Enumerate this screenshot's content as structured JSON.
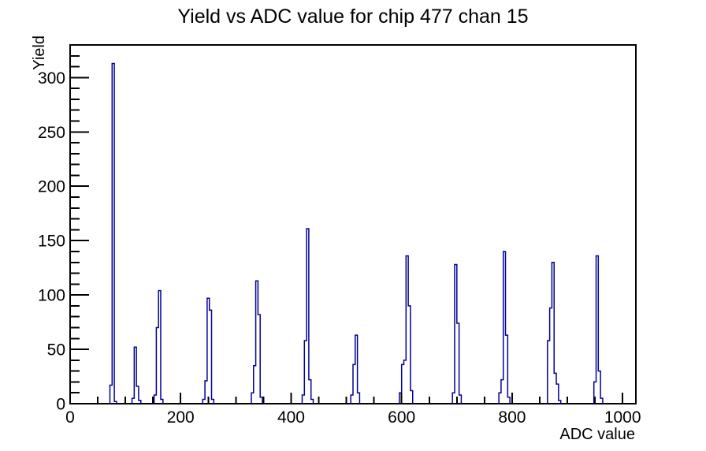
{
  "page": {
    "background_color": "#ffffff"
  },
  "chart_data": {
    "type": "bar",
    "title": "Yield vs ADC value for chip 477 chan 15",
    "xlabel": "ADC value",
    "ylabel": "Yield",
    "xlim": [
      0,
      1024
    ],
    "ylim": [
      0,
      330
    ],
    "x_major_ticks": [
      0,
      200,
      400,
      600,
      800,
      1000
    ],
    "x_minor_step": 50,
    "y_major_ticks": [
      0,
      50,
      100,
      150,
      200,
      250,
      300
    ],
    "y_minor_step": 10,
    "grid": false,
    "legend": false,
    "line_color": "#000099",
    "axis_color": "#000000",
    "bin_width_adc": 4,
    "bins_note": "histogram bins as [adc_bin_left_edge, yield]; regions between listed bins are zero",
    "bins": [
      [
        72,
        17
      ],
      [
        76,
        313
      ],
      [
        80,
        2
      ],
      [
        112,
        5
      ],
      [
        116,
        52
      ],
      [
        120,
        16
      ],
      [
        124,
        3
      ],
      [
        152,
        8
      ],
      [
        156,
        70
      ],
      [
        160,
        104
      ],
      [
        164,
        4
      ],
      [
        240,
        4
      ],
      [
        244,
        21
      ],
      [
        248,
        97
      ],
      [
        252,
        86
      ],
      [
        256,
        4
      ],
      [
        328,
        10
      ],
      [
        332,
        35
      ],
      [
        336,
        113
      ],
      [
        340,
        82
      ],
      [
        344,
        6
      ],
      [
        420,
        8
      ],
      [
        424,
        58
      ],
      [
        428,
        161
      ],
      [
        432,
        22
      ],
      [
        436,
        4
      ],
      [
        508,
        8
      ],
      [
        512,
        36
      ],
      [
        516,
        63
      ],
      [
        520,
        10
      ],
      [
        596,
        10
      ],
      [
        600,
        36
      ],
      [
        604,
        40
      ],
      [
        608,
        136
      ],
      [
        612,
        90
      ],
      [
        616,
        12
      ],
      [
        692,
        10
      ],
      [
        696,
        128
      ],
      [
        700,
        74
      ],
      [
        704,
        8
      ],
      [
        776,
        10
      ],
      [
        780,
        22
      ],
      [
        784,
        140
      ],
      [
        788,
        63
      ],
      [
        792,
        6
      ],
      [
        864,
        58
      ],
      [
        868,
        88
      ],
      [
        872,
        130
      ],
      [
        876,
        28
      ],
      [
        880,
        18
      ],
      [
        884,
        3
      ],
      [
        948,
        20
      ],
      [
        952,
        136
      ],
      [
        956,
        30
      ],
      [
        960,
        5
      ]
    ]
  }
}
